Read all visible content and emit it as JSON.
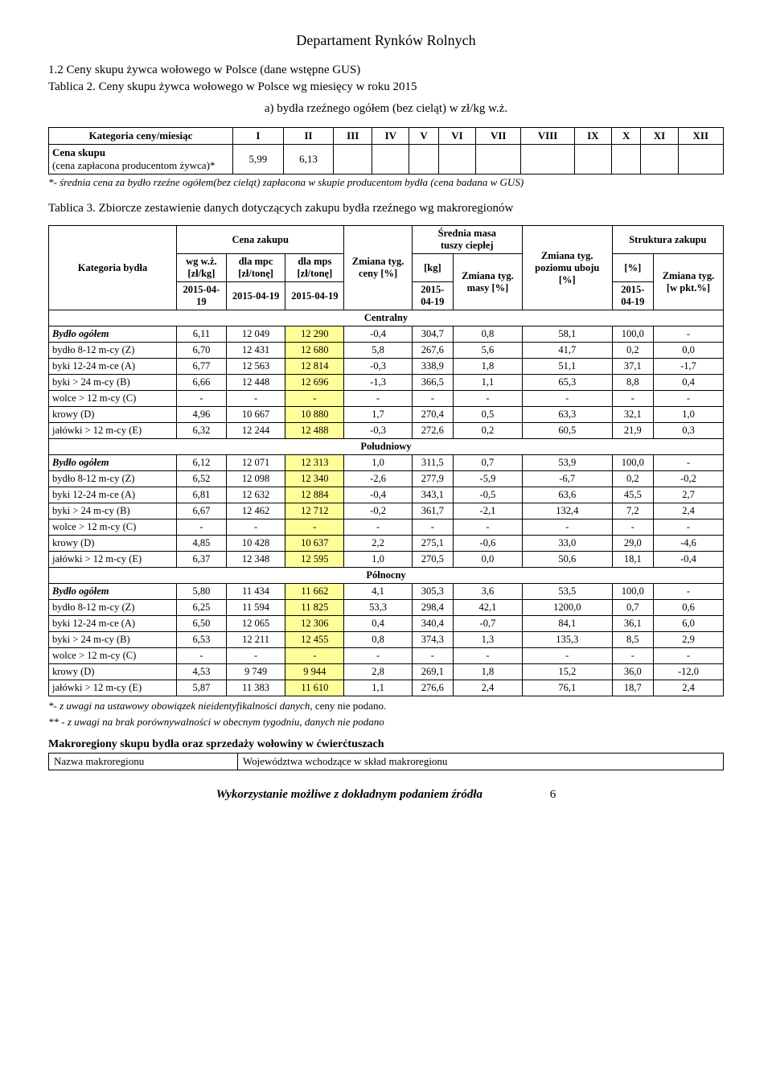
{
  "header": "Departament Rynków Rolnych",
  "section1_title": "1.2 Ceny skupu żywca wołowego w Polsce (dane wstępne GUS)",
  "tablica2_label": "Tablica 2. Ceny skupu żywca wołowego w Polsce wg miesięcy w roku 2015",
  "sub_a": "a)  bydła rzeźnego ogółem (bez cieląt)  w  zł/kg w.ż.",
  "t2": {
    "row0": "Kategoria ceny/miesiąc",
    "months": [
      "I",
      "II",
      "III",
      "IV",
      "V",
      "VI",
      "VII",
      "VIII",
      "IX",
      "X",
      "XI",
      "XII"
    ],
    "cena_skupu_label": "Cena skupu",
    "cena_skupu_sub": "(cena zapłacona producentom żywca)*",
    "v1": "5,99",
    "v2": "6,13"
  },
  "t2_footnote": "*- średnia cena za bydło rzeźne ogółem(bez cieląt) zapłacona w skupie producentom bydła (cena badana w GUS)",
  "tablica3_label": "Tablica 3. Zbiorcze zestawienie danych dotyczących zakupu bydła rzeźnego wg makroregionów",
  "t3h": {
    "kategoria": "Kategoria bydła",
    "cena_zakupu": "Cena zakupu",
    "srednia_masa": "Średnia  masa\ntuszy  ciepłej",
    "zmiana_tyg_poziomu": "Zmiana tyg. poziomu uboju [%]",
    "struktura": "Struktura  zakupu",
    "wgwz": "wg w.ż. [zł/kg]",
    "dlampc": "dla mpc [zł/tonę]",
    "dlamps": "dla mps [zł/tonę]",
    "zmiana_ceny": "Zmiana tyg. ceny [%]",
    "kg": "[kg]",
    "zmiana_masy": "Zmiana tyg. masy [%]",
    "pct": "[%]",
    "zmiana_pkt": "Zmiana tyg. [w pkt.%]",
    "date": "2015-04-19"
  },
  "groups": [
    {
      "name": "Centralny",
      "rows": [
        {
          "lbl": "Bydło ogółem",
          "it": true,
          "v": [
            "6,11",
            "12 049",
            "12 290",
            "-0,4",
            "304,7",
            "0,8",
            "58,1",
            "100,0",
            "-"
          ]
        },
        {
          "lbl": "bydło 8-12 m-cy (Z)",
          "v": [
            "6,70",
            "12 431",
            "12 680",
            "5,8",
            "267,6",
            "5,6",
            "41,7",
            "0,2",
            "0,0"
          ]
        },
        {
          "lbl": "byki 12-24 m-ce (A)",
          "v": [
            "6,77",
            "12 563",
            "12 814",
            "-0,3",
            "338,9",
            "1,8",
            "51,1",
            "37,1",
            "-1,7"
          ]
        },
        {
          "lbl": "byki > 24 m-cy (B)",
          "v": [
            "6,66",
            "12 448",
            "12 696",
            "-1,3",
            "366,5",
            "1,1",
            "65,3",
            "8,8",
            "0,4"
          ]
        },
        {
          "lbl": "wolce > 12 m-cy (C)",
          "v": [
            "-",
            "-",
            "-",
            "-",
            "-",
            "-",
            "-",
            "-",
            "-"
          ]
        },
        {
          "lbl": "krowy (D)",
          "v": [
            "4,96",
            "10 667",
            "10 880",
            "1,7",
            "270,4",
            "0,5",
            "63,3",
            "32,1",
            "1,0"
          ]
        },
        {
          "lbl": "jałówki > 12 m-cy (E)",
          "v": [
            "6,32",
            "12 244",
            "12 488",
            "-0,3",
            "272,6",
            "0,2",
            "60,5",
            "21,9",
            "0,3"
          ]
        }
      ]
    },
    {
      "name": "Południowy",
      "rows": [
        {
          "lbl": "Bydło ogółem",
          "it": true,
          "v": [
            "6,12",
            "12 071",
            "12 313",
            "1,0",
            "311,5",
            "0,7",
            "53,9",
            "100,0",
            "-"
          ]
        },
        {
          "lbl": "bydło 8-12 m-cy (Z)",
          "v": [
            "6,52",
            "12 098",
            "12 340",
            "-2,6",
            "277,9",
            "-5,9",
            "-6,7",
            "0,2",
            "-0,2"
          ]
        },
        {
          "lbl": "byki 12-24 m-ce (A)",
          "v": [
            "6,81",
            "12 632",
            "12 884",
            "-0,4",
            "343,1",
            "-0,5",
            "63,6",
            "45,5",
            "2,7"
          ]
        },
        {
          "lbl": "byki > 24 m-cy (B)",
          "v": [
            "6,67",
            "12 462",
            "12 712",
            "-0,2",
            "361,7",
            "-2,1",
            "132,4",
            "7,2",
            "2,4"
          ]
        },
        {
          "lbl": "wolce > 12 m-cy (C)",
          "v": [
            "-",
            "-",
            "-",
            "-",
            "-",
            "-",
            "-",
            "-",
            "-"
          ]
        },
        {
          "lbl": "krowy (D)",
          "v": [
            "4,85",
            "10 428",
            "10 637",
            "2,2",
            "275,1",
            "-0,6",
            "33,0",
            "29,0",
            "-4,6"
          ]
        },
        {
          "lbl": "jałówki > 12 m-cy (E)",
          "v": [
            "6,37",
            "12 348",
            "12 595",
            "1,0",
            "270,5",
            "0,0",
            "50,6",
            "18,1",
            "-0,4"
          ]
        }
      ]
    },
    {
      "name": "Północny",
      "rows": [
        {
          "lbl": "Bydło ogółem",
          "it": true,
          "v": [
            "5,80",
            "11 434",
            "11 662",
            "4,1",
            "305,3",
            "3,6",
            "53,5",
            "100,0",
            "-"
          ]
        },
        {
          "lbl": "bydło 8-12 m-cy (Z)",
          "v": [
            "6,25",
            "11 594",
            "11 825",
            "53,3",
            "298,4",
            "42,1",
            "1200,0",
            "0,7",
            "0,6"
          ]
        },
        {
          "lbl": "byki 12-24 m-ce (A)",
          "v": [
            "6,50",
            "12 065",
            "12 306",
            "0,4",
            "340,4",
            "-0,7",
            "84,1",
            "36,1",
            "6,0"
          ]
        },
        {
          "lbl": "byki > 24 m-cy (B)",
          "v": [
            "6,53",
            "12 211",
            "12 455",
            "0,8",
            "374,3",
            "1,3",
            "135,3",
            "8,5",
            "2,9"
          ]
        },
        {
          "lbl": "wolce > 12 m-cy (C)",
          "v": [
            "-",
            "-",
            "-",
            "-",
            "-",
            "-",
            "-",
            "-",
            "-"
          ]
        },
        {
          "lbl": "krowy (D)",
          "v": [
            "4,53",
            "9 749",
            "9 944",
            "2,8",
            "269,1",
            "1,8",
            "15,2",
            "36,0",
            "-12,0"
          ]
        },
        {
          "lbl": "jałówki > 12 m-cy (E)",
          "v": [
            "5,87",
            "11 383",
            "11 610",
            "1,1",
            "276,6",
            "2,4",
            "76,1",
            "18,7",
            "2,4"
          ]
        }
      ]
    }
  ],
  "note1": "*- z uwagi na ustawowy obowiązek nieidentyfikalności danych, ceny nie podano.",
  "note2": "** - z uwagi na brak porównywalności w obecnym tygodniu, danych nie podano",
  "note1_tail_normal": "ceny nie podano.",
  "makro_title": "Makroregiony skupu bydła oraz sprzedaży wołowiny w ćwierćtuszach",
  "makro_h1": "Nazwa makroregionu",
  "makro_h2": "Województwa wchodzące w skład makroregionu",
  "footer_text": "Wykorzystanie możliwe z dokładnym podaniem źródła",
  "page_num": "6"
}
